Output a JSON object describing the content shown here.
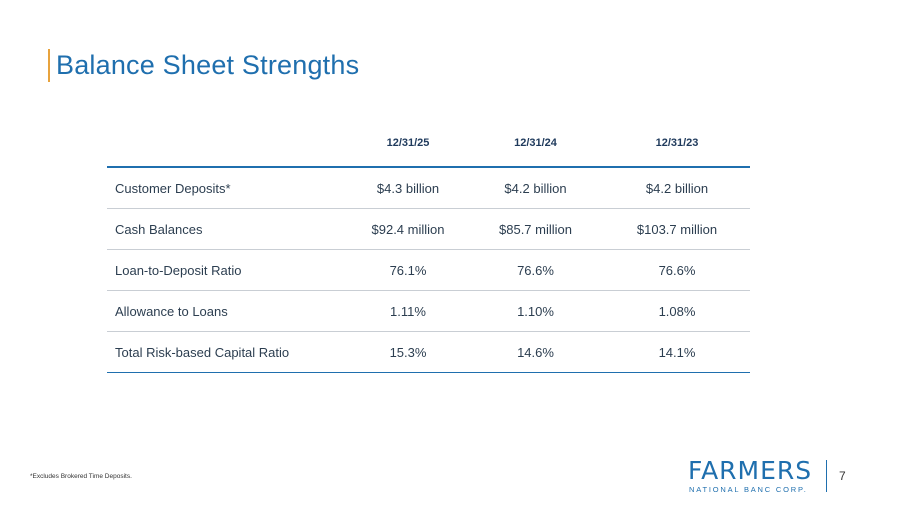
{
  "slide": {
    "title": "Balance Sheet Strengths",
    "page_number": "7"
  },
  "table": {
    "headers": [
      "",
      "12/31/25",
      "12/31/24",
      "12/31/23"
    ],
    "rows": [
      {
        "label": "Customer Deposits*",
        "values": [
          "$4.3 billion",
          "$4.2 billion",
          "$4.2 billion"
        ]
      },
      {
        "label": "Cash Balances",
        "values": [
          "$92.4 million",
          "$85.7 million",
          "$103.7 million"
        ]
      },
      {
        "label": "Loan-to-Deposit Ratio",
        "values": [
          "76.1%",
          "76.6%",
          "76.6%"
        ]
      },
      {
        "label": "Allowance to Loans",
        "values": [
          "1.11%",
          "1.10%",
          "1.08%"
        ]
      },
      {
        "label": "Total Risk-based Capital Ratio",
        "values": [
          "15.3%",
          "14.6%",
          "14.1%"
        ]
      }
    ]
  },
  "footnote": "*Excludes Brokered Time Deposits.",
  "logo": {
    "wordmark": "FARMERS",
    "subtitle": "NATIONAL BANC CORP."
  },
  "colors": {
    "brand_blue": "#1f6fae",
    "accent_orange": "#e8a33d"
  }
}
